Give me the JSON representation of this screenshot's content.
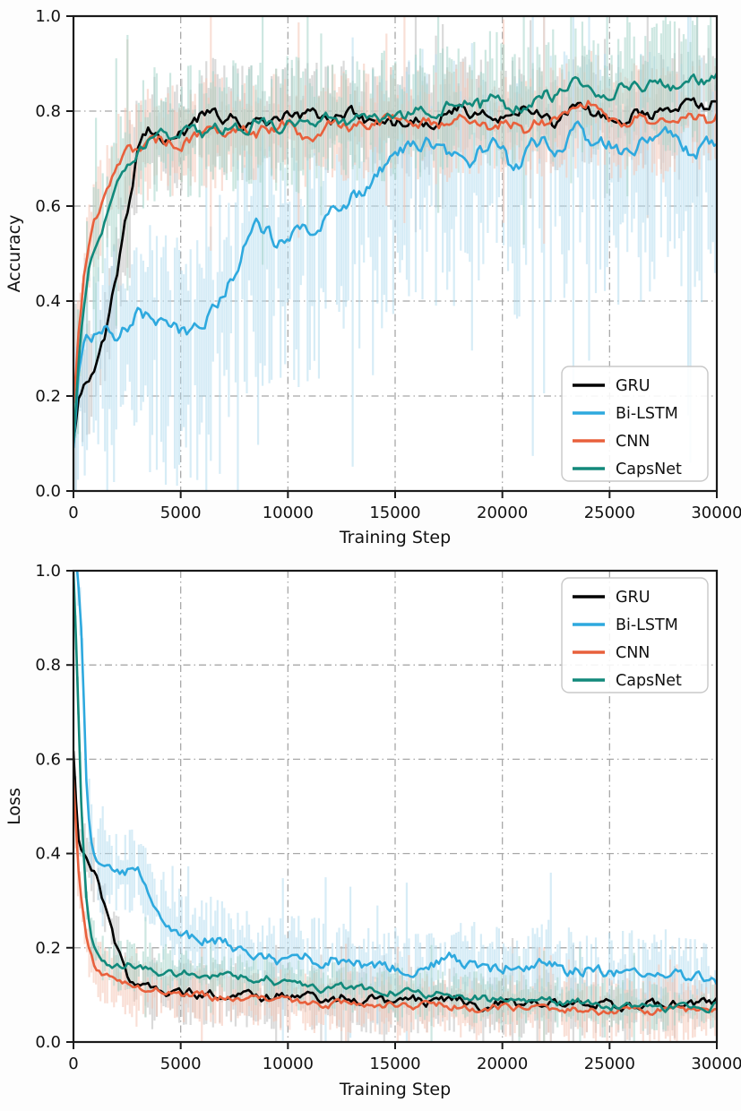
{
  "figure": {
    "background": "#fdfdfd",
    "description": "Training curves comparing four models",
    "grid_color": "#a8a8a8",
    "spine_color": "#1a1a1a",
    "text_color": "#111111"
  },
  "chart_data": [
    {
      "type": "line",
      "title": "",
      "xlabel": "Training Step",
      "ylabel": "Accuracy",
      "xlim": [
        0,
        30000
      ],
      "ylim": [
        0.0,
        1.0
      ],
      "x_ticks": [
        0,
        5000,
        10000,
        15000,
        20000,
        25000,
        30000
      ],
      "x_tick_labels": [
        "0",
        "5000",
        "10000",
        "15000",
        "20000",
        "25000",
        "30000"
      ],
      "y_ticks": [
        0.0,
        0.2,
        0.4,
        0.6,
        0.8,
        1.0
      ],
      "y_tick_labels": [
        "0.0",
        "0.2",
        "0.4",
        "0.6",
        "0.8",
        "1.0"
      ],
      "grid": "dash-dot",
      "legend_position": "lower right",
      "x": [
        0,
        250,
        500,
        750,
        1000,
        1500,
        2000,
        2500,
        3000,
        3500,
        4000,
        4500,
        5000,
        5500,
        6000,
        6500,
        7000,
        7500,
        8000,
        8500,
        9000,
        9500,
        10000,
        10500,
        11000,
        11500,
        12000,
        12500,
        13000,
        13500,
        14000,
        14500,
        15000,
        15500,
        16000,
        16500,
        17000,
        17500,
        18000,
        18500,
        19000,
        19500,
        20000,
        20500,
        21000,
        21500,
        22000,
        22500,
        23000,
        23500,
        24000,
        24500,
        25000,
        25500,
        26000,
        26500,
        27000,
        27500,
        28000,
        28500,
        29000,
        29500,
        30000
      ],
      "series": [
        {
          "name": "GRU",
          "color": "#000000",
          "band_color": "#bdbdbd",
          "jitter": 0.013,
          "band_amp": 0.11,
          "band_down_bias": 1.0,
          "y": [
            0.1,
            0.21,
            0.23,
            0.24,
            0.25,
            0.33,
            0.45,
            0.58,
            0.72,
            0.77,
            0.75,
            0.74,
            0.75,
            0.76,
            0.79,
            0.8,
            0.78,
            0.79,
            0.77,
            0.78,
            0.76,
            0.78,
            0.8,
            0.79,
            0.8,
            0.79,
            0.78,
            0.79,
            0.8,
            0.78,
            0.78,
            0.79,
            0.77,
            0.78,
            0.79,
            0.77,
            0.78,
            0.8,
            0.81,
            0.8,
            0.81,
            0.79,
            0.78,
            0.8,
            0.81,
            0.8,
            0.78,
            0.77,
            0.8,
            0.81,
            0.8,
            0.79,
            0.78,
            0.77,
            0.79,
            0.8,
            0.79,
            0.8,
            0.81,
            0.82,
            0.82,
            0.81,
            0.83
          ]
        },
        {
          "name": "Bi-LSTM",
          "color": "#2ea9de",
          "band_color": "#b5ddf0",
          "jitter": 0.016,
          "band_amp": 0.18,
          "band_down_bias": 1.7,
          "y": [
            0.1,
            0.26,
            0.32,
            0.33,
            0.33,
            0.34,
            0.33,
            0.35,
            0.38,
            0.37,
            0.35,
            0.34,
            0.34,
            0.33,
            0.35,
            0.38,
            0.42,
            0.46,
            0.52,
            0.56,
            0.55,
            0.52,
            0.53,
            0.55,
            0.54,
            0.56,
            0.58,
            0.6,
            0.62,
            0.63,
            0.65,
            0.68,
            0.7,
            0.72,
            0.73,
            0.74,
            0.72,
            0.71,
            0.72,
            0.7,
            0.72,
            0.73,
            0.72,
            0.66,
            0.7,
            0.73,
            0.74,
            0.71,
            0.74,
            0.76,
            0.74,
            0.73,
            0.74,
            0.72,
            0.7,
            0.73,
            0.74,
            0.75,
            0.74,
            0.72,
            0.71,
            0.73,
            0.72
          ]
        },
        {
          "name": "CNN",
          "color": "#e8603c",
          "band_color": "#f5c6b5",
          "jitter": 0.013,
          "band_amp": 0.11,
          "band_down_bias": 1.0,
          "y": [
            0.18,
            0.33,
            0.45,
            0.52,
            0.57,
            0.62,
            0.69,
            0.71,
            0.72,
            0.73,
            0.74,
            0.74,
            0.73,
            0.74,
            0.75,
            0.76,
            0.75,
            0.76,
            0.77,
            0.75,
            0.76,
            0.77,
            0.78,
            0.76,
            0.74,
            0.76,
            0.78,
            0.77,
            0.76,
            0.78,
            0.77,
            0.78,
            0.79,
            0.78,
            0.77,
            0.78,
            0.76,
            0.77,
            0.79,
            0.78,
            0.77,
            0.76,
            0.78,
            0.77,
            0.76,
            0.78,
            0.77,
            0.79,
            0.78,
            0.8,
            0.82,
            0.8,
            0.78,
            0.77,
            0.78,
            0.79,
            0.78,
            0.77,
            0.79,
            0.8,
            0.79,
            0.78,
            0.8
          ]
        },
        {
          "name": "CapsNet",
          "color": "#12897b",
          "band_color": "#a5d4ca",
          "jitter": 0.013,
          "band_amp": 0.13,
          "band_down_bias": 1.0,
          "y": [
            0.1,
            0.28,
            0.4,
            0.48,
            0.52,
            0.58,
            0.63,
            0.69,
            0.72,
            0.74,
            0.76,
            0.75,
            0.75,
            0.76,
            0.75,
            0.77,
            0.76,
            0.77,
            0.76,
            0.78,
            0.77,
            0.76,
            0.78,
            0.77,
            0.78,
            0.77,
            0.79,
            0.78,
            0.77,
            0.79,
            0.78,
            0.79,
            0.78,
            0.79,
            0.8,
            0.79,
            0.8,
            0.81,
            0.8,
            0.82,
            0.81,
            0.83,
            0.82,
            0.8,
            0.81,
            0.82,
            0.84,
            0.83,
            0.85,
            0.86,
            0.84,
            0.83,
            0.84,
            0.85,
            0.86,
            0.85,
            0.87,
            0.86,
            0.85,
            0.86,
            0.87,
            0.86,
            0.88
          ]
        }
      ]
    },
    {
      "type": "line",
      "title": "",
      "xlabel": "Training Step",
      "ylabel": "Loss",
      "xlim": [
        0,
        30000
      ],
      "ylim": [
        0.0,
        1.0
      ],
      "x_ticks": [
        0,
        5000,
        10000,
        15000,
        20000,
        25000,
        30000
      ],
      "x_tick_labels": [
        "0",
        "5000",
        "10000",
        "15000",
        "20000",
        "25000",
        "30000"
      ],
      "y_ticks": [
        0.0,
        0.2,
        0.4,
        0.6,
        0.8,
        1.0
      ],
      "y_tick_labels": [
        "0.0",
        "0.2",
        "0.4",
        "0.6",
        "0.8",
        "1.0"
      ],
      "grid": "dash-dot",
      "legend_position": "upper right",
      "x": [
        0,
        200,
        400,
        600,
        800,
        1000,
        1500,
        2000,
        2500,
        3000,
        3500,
        4000,
        4500,
        5000,
        5500,
        6000,
        6500,
        7000,
        7500,
        8000,
        8500,
        9000,
        9500,
        10000,
        10500,
        11000,
        11500,
        12000,
        12500,
        13000,
        13500,
        14000,
        14500,
        15000,
        15500,
        16000,
        16500,
        17000,
        17500,
        18000,
        18500,
        19000,
        19500,
        20000,
        20500,
        21000,
        21500,
        22000,
        22500,
        23000,
        23500,
        24000,
        24500,
        25000,
        25500,
        26000,
        26500,
        27000,
        27500,
        28000,
        28500,
        29000,
        29500,
        30000
      ],
      "series": [
        {
          "name": "GRU",
          "color": "#000000",
          "band_color": "#bdbdbd",
          "jitter": 0.01,
          "band_amp": 0.065,
          "band_down_bias": 1.0,
          "y": [
            0.62,
            0.44,
            0.41,
            0.4,
            0.38,
            0.36,
            0.28,
            0.2,
            0.14,
            0.12,
            0.115,
            0.11,
            0.105,
            0.1,
            0.105,
            0.1,
            0.1,
            0.105,
            0.1,
            0.1,
            0.095,
            0.095,
            0.1,
            0.1,
            0.095,
            0.095,
            0.09,
            0.09,
            0.095,
            0.095,
            0.09,
            0.09,
            0.085,
            0.085,
            0.09,
            0.09,
            0.085,
            0.085,
            0.09,
            0.09,
            0.085,
            0.065,
            0.08,
            0.085,
            0.08,
            0.08,
            0.085,
            0.085,
            0.08,
            0.08,
            0.085,
            0.085,
            0.08,
            0.08,
            0.075,
            0.075,
            0.08,
            0.08,
            0.08,
            0.085,
            0.08,
            0.08,
            0.085,
            0.085
          ]
        },
        {
          "name": "Bi-LSTM",
          "color": "#2ea9de",
          "band_color": "#b5ddf0",
          "jitter": 0.012,
          "band_amp": 0.085,
          "band_down_bias": 1.0,
          "y": [
            1.05,
            1.0,
            0.85,
            0.55,
            0.43,
            0.38,
            0.37,
            0.36,
            0.36,
            0.37,
            0.32,
            0.28,
            0.25,
            0.23,
            0.22,
            0.21,
            0.22,
            0.21,
            0.2,
            0.19,
            0.18,
            0.185,
            0.17,
            0.18,
            0.19,
            0.18,
            0.17,
            0.175,
            0.165,
            0.17,
            0.16,
            0.165,
            0.16,
            0.16,
            0.155,
            0.155,
            0.16,
            0.17,
            0.18,
            0.17,
            0.165,
            0.16,
            0.155,
            0.15,
            0.165,
            0.155,
            0.17,
            0.18,
            0.16,
            0.15,
            0.15,
            0.155,
            0.15,
            0.15,
            0.145,
            0.15,
            0.145,
            0.14,
            0.15,
            0.145,
            0.14,
            0.14,
            0.135,
            0.12
          ]
        },
        {
          "name": "CNN",
          "color": "#e8603c",
          "band_color": "#f5c6b5",
          "jitter": 0.008,
          "band_amp": 0.06,
          "band_down_bias": 1.0,
          "y": [
            0.55,
            0.38,
            0.28,
            0.22,
            0.19,
            0.16,
            0.14,
            0.125,
            0.12,
            0.115,
            0.11,
            0.11,
            0.105,
            0.1,
            0.1,
            0.1,
            0.095,
            0.095,
            0.095,
            0.095,
            0.09,
            0.09,
            0.09,
            0.09,
            0.085,
            0.085,
            0.08,
            0.08,
            0.085,
            0.085,
            0.08,
            0.08,
            0.08,
            0.08,
            0.075,
            0.075,
            0.08,
            0.08,
            0.075,
            0.075,
            0.07,
            0.07,
            0.075,
            0.075,
            0.07,
            0.07,
            0.075,
            0.075,
            0.07,
            0.07,
            0.07,
            0.07,
            0.065,
            0.065,
            0.07,
            0.07,
            0.065,
            0.065,
            0.07,
            0.07,
            0.065,
            0.065,
            0.065,
            0.07
          ]
        },
        {
          "name": "CapsNet",
          "color": "#12897b",
          "band_color": "#a5d4ca",
          "jitter": 0.008,
          "band_amp": 0.05,
          "band_down_bias": 1.0,
          "y": [
            1.0,
            0.75,
            0.45,
            0.3,
            0.23,
            0.2,
            0.17,
            0.16,
            0.165,
            0.155,
            0.16,
            0.15,
            0.155,
            0.14,
            0.15,
            0.145,
            0.14,
            0.145,
            0.135,
            0.14,
            0.13,
            0.135,
            0.125,
            0.13,
            0.12,
            0.125,
            0.115,
            0.12,
            0.12,
            0.115,
            0.115,
            0.11,
            0.11,
            0.105,
            0.105,
            0.1,
            0.1,
            0.105,
            0.1,
            0.1,
            0.095,
            0.095,
            0.09,
            0.09,
            0.09,
            0.085,
            0.09,
            0.09,
            0.085,
            0.08,
            0.085,
            0.085,
            0.08,
            0.075,
            0.08,
            0.08,
            0.075,
            0.075,
            0.07,
            0.07,
            0.075,
            0.075,
            0.07,
            0.08
          ]
        }
      ]
    }
  ]
}
